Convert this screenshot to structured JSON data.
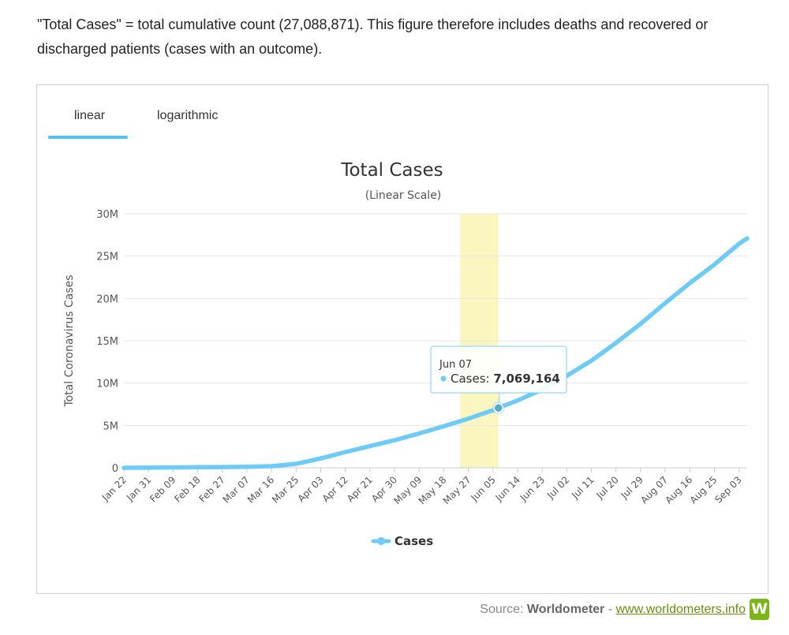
{
  "intro_text": "\"Total Cases\" = total cumulative count (27,088,871). This figure therefore includes deaths and recovered or discharged patients (cases with an outcome).",
  "tabs": [
    {
      "label": "linear",
      "active": true
    },
    {
      "label": "logarithmic",
      "active": false
    }
  ],
  "source": {
    "prefix": "Source: ",
    "name": "Worldometer",
    "separator": " - ",
    "link_text": "www.worldometers.info",
    "logo_letter": "W"
  },
  "colors": {
    "series": "#6ecbf5",
    "highlight_band": "#fbf6c0",
    "tab_underline": "#55c2f1",
    "link": "#6a8c10",
    "logo": "#7cb518"
  },
  "chart_data": {
    "type": "line",
    "title": "Total Cases",
    "subtitle": "(Linear Scale)",
    "xlabel": "",
    "ylabel": "Total Coronavirus Cases",
    "y_ticks": [
      "0",
      "5M",
      "10M",
      "15M",
      "20M",
      "25M",
      "30M"
    ],
    "ylim": [
      0,
      30000000
    ],
    "grid": true,
    "legend_position": "bottom-center",
    "x_start": "Jan 22",
    "x_end": "Sep 06",
    "x_tick_labels": [
      "Jan 22",
      "Jan 31",
      "Feb 09",
      "Feb 18",
      "Feb 27",
      "Mar 07",
      "Mar 16",
      "Mar 25",
      "Apr 03",
      "Apr 12",
      "Apr 21",
      "Apr 30",
      "May 09",
      "May 18",
      "May 27",
      "Jun 05",
      "Jun 14",
      "Jun 23",
      "Jul 02",
      "Jul 11",
      "Jul 20",
      "Jul 29",
      "Aug 07",
      "Aug 16",
      "Aug 25",
      "Sep 03"
    ],
    "series": [
      {
        "name": "Cases",
        "points": [
          [
            "Jan 22",
            580
          ],
          [
            "Jan 31",
            9800
          ],
          [
            "Feb 09",
            40500
          ],
          [
            "Feb 18",
            75200
          ],
          [
            "Feb 27",
            83500
          ],
          [
            "Mar 07",
            107500
          ],
          [
            "Mar 16",
            182000
          ],
          [
            "Mar 25",
            470000
          ],
          [
            "Apr 03",
            1100000
          ],
          [
            "Apr 12",
            1850000
          ],
          [
            "Apr 21",
            2550000
          ],
          [
            "Apr 30",
            3250000
          ],
          [
            "May 09",
            4050000
          ],
          [
            "May 18",
            4900000
          ],
          [
            "May 27",
            5800000
          ],
          [
            "Jun 05",
            6800000
          ],
          [
            "Jun 07",
            7069164
          ],
          [
            "Jun 14",
            7950000
          ],
          [
            "Jun 23",
            9250000
          ],
          [
            "Jul 02",
            10850000
          ],
          [
            "Jul 11",
            12650000
          ],
          [
            "Jul 20",
            14750000
          ],
          [
            "Jul 29",
            17000000
          ],
          [
            "Aug 07",
            19450000
          ],
          [
            "Aug 16",
            21800000
          ],
          [
            "Aug 25",
            24000000
          ],
          [
            "Sep 03",
            26450000
          ],
          [
            "Sep 06",
            27088871
          ]
        ]
      }
    ],
    "tooltip": {
      "date": "Jun 07",
      "series_label": "Cases: ",
      "value_text": "7,069,164",
      "value": 7069164
    },
    "highlight_band": {
      "from": "May 24",
      "to": "Jun 07"
    }
  }
}
